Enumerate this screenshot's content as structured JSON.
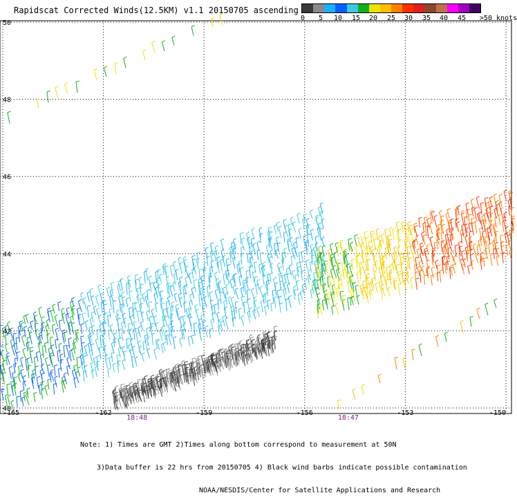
{
  "title": "Rapidscat Corrected Winds(12.5KM) v1.1 20150705 ascending",
  "colorbar": {
    "colors": [
      "#3a3a3a",
      "#8a8a8a",
      "#1ab0ff",
      "#0a60ff",
      "#40c8e0",
      "#10b020",
      "#f0e000",
      "#ffc000",
      "#ff8000",
      "#ff3000",
      "#e02020",
      "#8b4a2b",
      "#c07050",
      "#ff00ff",
      "#a000c0",
      "#400060"
    ],
    "labels": [
      "0",
      "5",
      "10",
      "15",
      "20",
      "25",
      "30",
      "35",
      "40",
      "45",
      ">50 knots"
    ]
  },
  "axes": {
    "lon_ticks": [
      "-165",
      "-162",
      "-159",
      "-156",
      "-153",
      "-150"
    ],
    "lat_ticks": [
      "40",
      "42",
      "44",
      "46",
      "48",
      "50"
    ],
    "lon_range": [
      -165,
      -150
    ],
    "lat_range": [
      40,
      50
    ]
  },
  "time_labels": [
    {
      "text": "18:48",
      "lon": -161.0
    },
    {
      "text": "18:47",
      "lon": -154.7
    }
  ],
  "notes": [
    "Note: 1) Times are GMT 2)Times along bottom correspond to measurement at 50N",
    "3)Data buffer is 22 hrs from 20150705 4) Black wind barbs indicate possible contamination",
    "NOAA/NESDIS/Center for Satellite Applications and Research"
  ]
}
